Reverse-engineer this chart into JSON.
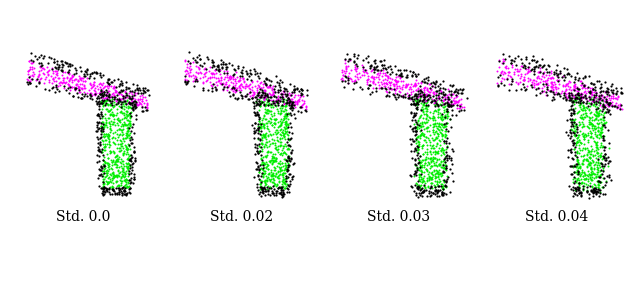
{
  "labels": [
    "Std. 0.0",
    "Std. 0.02",
    "Std. 0.03",
    "Std. 0.04"
  ],
  "noise_levels": [
    0.0,
    0.02,
    0.03,
    0.04
  ],
  "colors": {
    "magenta": "#ff00ff",
    "black": "#000000",
    "green": "#00ee00"
  },
  "label_fontsize": 10,
  "fig_width": 6.4,
  "fig_height": 2.82,
  "background": "#ffffff",
  "point_size": 2.0
}
